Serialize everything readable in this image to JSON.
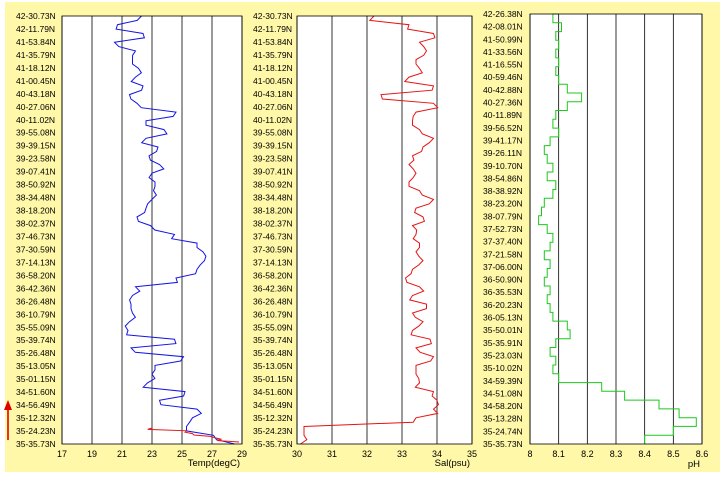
{
  "colors": {
    "panel_bg": "#FFF8A8",
    "plot_bg": "#FFFFFF",
    "grid": "#000000",
    "arrow": "#E00000"
  },
  "arrow_icon": "up-arrow-icon",
  "chart_data": [
    {
      "type": "line",
      "xlabel": "Temp(degC)",
      "xlim": [
        17,
        29
      ],
      "xticks": [
        "17",
        "19",
        "21",
        "23",
        "25",
        "27",
        "29"
      ],
      "y_labels": [
        "42-30.73N",
        "42-11.79N",
        "41-53.84N",
        "41-35.79N",
        "41-18.12N",
        "41-00.45N",
        "40-43.18N",
        "40-27.06N",
        "40-11.02N",
        "39-55.08N",
        "39-39.15N",
        "39-23.58N",
        "39-07.41N",
        "38-50.92N",
        "38-34.48N",
        "38-18.20N",
        "38-02.37N",
        "37-46.73N",
        "37-30.59N",
        "37-14.13N",
        "36-58.20N",
        "36-42.36N",
        "36-26.48N",
        "36-10.79N",
        "35-55.09N",
        "35-39.74N",
        "35-26.48N",
        "35-13.05N",
        "35-01.15N",
        "34-51.60N",
        "34-56.49N",
        "35-12.32N",
        "35-24.23N",
        "35-35.73N"
      ],
      "series": [
        {
          "color": "#1414E6",
          "values": [
            22.3,
            20.7,
            22.4,
            20.5,
            21.9,
            21.7,
            22.1,
            21.9,
            22.4,
            21.5,
            22.0,
            24.6,
            22.6,
            23.8,
            22.6,
            23.4,
            22.8,
            23.5,
            23.0,
            23.2,
            23.1,
            23.0,
            22.6,
            22.0,
            22.9,
            24.5,
            26.0,
            26.4,
            26.5,
            26.0,
            24.6,
            21.9,
            21.7,
            21.6,
            21.7,
            21.5,
            21.4,
            24.5,
            21.6,
            25.1,
            23.2,
            23.0,
            22.7,
            25.2,
            23.5,
            26.0,
            25.7,
            25.3,
            27.1,
            28.5
          ]
        },
        {
          "color": "#E61414",
          "values": [
            23.0,
            25.3,
            25.7,
            26.9,
            27.6,
            28.8
          ]
        }
      ]
    },
    {
      "type": "line",
      "xlabel": "Sal(psu)",
      "xlim": [
        30,
        35
      ],
      "xticks": [
        "30",
        "31",
        "32",
        "33",
        "34",
        "35"
      ],
      "y_labels": [
        "42-30.73N",
        "42-11.79N",
        "41-53.84N",
        "41-35.79N",
        "41-18.12N",
        "41-00.45N",
        "40-43.18N",
        "40-27.06N",
        "40-11.02N",
        "39-55.08N",
        "39-39.15N",
        "39-23.58N",
        "39-07.41N",
        "38-50.92N",
        "38-34.48N",
        "38-18.20N",
        "38-02.37N",
        "37-46.73N",
        "37-30.59N",
        "37-14.13N",
        "36-58.20N",
        "36-42.36N",
        "36-26.48N",
        "36-10.79N",
        "35-55.09N",
        "35-39.74N",
        "35-26.48N",
        "35-13.05N",
        "35-01.15N",
        "34-51.60N",
        "34-56.49N",
        "35-12.32N",
        "35-24.23N",
        "35-35.73N"
      ],
      "series": [
        {
          "color": "#E61414",
          "values": [
            32.2,
            33.2,
            33.9,
            33.5,
            33.7,
            33.4,
            33.5,
            33.2,
            33.9,
            32.4,
            33.9,
            33.4,
            33.3,
            33.5,
            33.9,
            33.6,
            33.3,
            33.2,
            33.4,
            33.2,
            33.5,
            33.9,
            33.4,
            33.6,
            33.3,
            33.4,
            33.5,
            33.4,
            33.6,
            33.3,
            33.1,
            33.5,
            33.3,
            33.7,
            33.3,
            33.6,
            33.3,
            33.8,
            33.4,
            33.9,
            33.4,
            33.4,
            33.5,
            33.9,
            34.0,
            33.9,
            33.4,
            30.2,
            30.2,
            30.1
          ]
        }
      ]
    },
    {
      "type": "line",
      "xlabel": "pH",
      "xlim": [
        8.0,
        8.6
      ],
      "xticks": [
        "8",
        "8.1",
        "8.2",
        "8.3",
        "8.4",
        "8.5",
        "8.6"
      ],
      "y_labels": [
        "42-26.38N",
        "42-08.01N",
        "41-50.99N",
        "41-33.56N",
        "41-16.55N",
        "40-59.46N",
        "40-42.88N",
        "40-27.36N",
        "40-11.89N",
        "39-56.52N",
        "39-41.17N",
        "39-26.11N",
        "39-10.70N",
        "38-54.86N",
        "38-38.92N",
        "38-23.20N",
        "38-07.79N",
        "37-52.73N",
        "37-37.40N",
        "37-21.58N",
        "37-06.00N",
        "36-50.90N",
        "36-35.53N",
        "36-20.23N",
        "36-05.13N",
        "35-50.01N",
        "35-35.91N",
        "35-23.03N",
        "35-10.02N",
        "34-59.39N",
        "34-51.08N",
        "34-58.20N",
        "35-13.28N",
        "35-24.74N",
        "35-35.73N"
      ],
      "series": [
        {
          "color": "#1EC81E",
          "values": [
            8.1,
            8.08,
            8.11,
            8.09,
            8.1,
            8.09,
            8.1,
            8.09,
            8.1,
            8.13,
            8.18,
            8.13,
            8.09,
            8.08,
            8.1,
            8.07,
            8.05,
            8.06,
            8.08,
            8.06,
            8.09,
            8.08,
            8.05,
            8.04,
            8.03,
            8.06,
            8.08,
            8.07,
            8.05,
            8.07,
            8.06,
            8.05,
            8.07,
            8.06,
            8.07,
            8.08,
            8.13,
            8.14,
            8.09,
            8.07,
            8.09,
            8.08,
            8.1,
            8.25,
            8.33,
            8.45,
            8.52,
            8.58,
            8.5,
            8.4
          ]
        }
      ]
    }
  ]
}
